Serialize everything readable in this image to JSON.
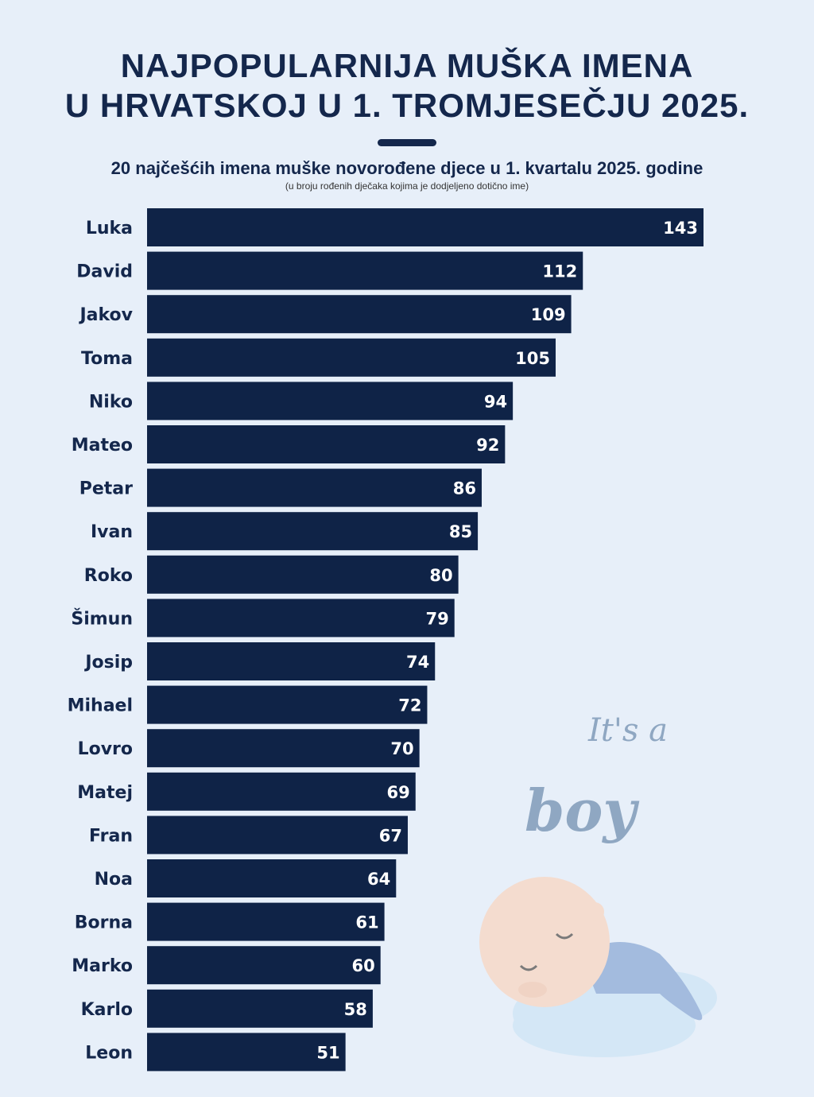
{
  "title_lines": [
    "NAJPOPULARNIJA MUŠKA IMENA",
    "U HRVATSKOJ U 1. TROMJESEČJU 2025."
  ],
  "colors": {
    "background": "#e7eff9",
    "bar": "#0f2347",
    "text": "#14274c",
    "value_text": "#ffffff",
    "illustration_text": "#8fa7c2"
  },
  "illustration": {
    "lettering": "It's a boy",
    "icon": "sleeping-baby-on-cloud"
  },
  "chart_data": {
    "type": "bar",
    "orientation": "horizontal",
    "title": "20 najčešćih imena muške novorođene djece u 1. kvartalu 2025. godine",
    "subtitle": "(u broju rođenih dječaka kojima je dodjeljeno dotično ime)",
    "categories": [
      "Luka",
      "David",
      "Jakov",
      "Toma",
      "Niko",
      "Mateo",
      "Petar",
      "Ivan",
      "Roko",
      "Šimun",
      "Josip",
      "Mihael",
      "Lovro",
      "Matej",
      "Fran",
      "Noa",
      "Borna",
      "Marko",
      "Karlo",
      "Leon"
    ],
    "values": [
      143,
      112,
      109,
      105,
      94,
      92,
      86,
      85,
      80,
      79,
      74,
      72,
      70,
      69,
      67,
      64,
      61,
      60,
      58,
      51
    ],
    "data_labels": true,
    "grid": false,
    "xlim": [
      0,
      143
    ]
  }
}
